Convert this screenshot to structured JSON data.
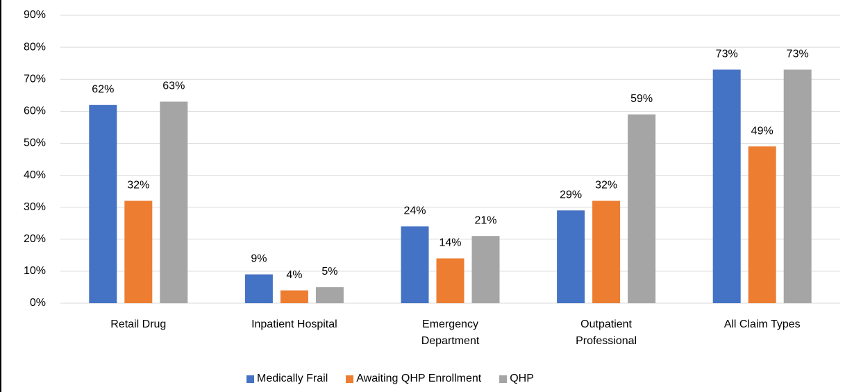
{
  "chart_data": {
    "type": "bar",
    "categories": [
      "Retail Drug",
      "Inpatient Hospital",
      "Emergency Department",
      "Outpatient Professional",
      "All Claim Types"
    ],
    "series": [
      {
        "name": "Medically Frail",
        "color": "#4472c4",
        "values": [
          62,
          9,
          24,
          29,
          73
        ],
        "value_labels": [
          "62%",
          "9%",
          "24%",
          "29%",
          "73%"
        ]
      },
      {
        "name": "Awaiting QHP Enrollment",
        "color": "#ed7d31",
        "values": [
          32,
          4,
          14,
          32,
          49
        ],
        "value_labels": [
          "32%",
          "4%",
          "14%",
          "32%",
          "49%"
        ]
      },
      {
        "name": "QHP",
        "color": "#a5a5a5",
        "values": [
          63,
          5,
          21,
          59,
          73
        ],
        "value_labels": [
          "63%",
          "5%",
          "21%",
          "59%",
          "73%"
        ]
      }
    ],
    "ylim": [
      0,
      90
    ],
    "yticks": [
      {
        "value": 0,
        "label": "0%"
      },
      {
        "value": 10,
        "label": "10%"
      },
      {
        "value": 20,
        "label": "20%"
      },
      {
        "value": 30,
        "label": "30%"
      },
      {
        "value": 40,
        "label": "40%"
      },
      {
        "value": 50,
        "label": "50%"
      },
      {
        "value": 60,
        "label": "60%"
      },
      {
        "value": 70,
        "label": "70%"
      },
      {
        "value": 80,
        "label": "80%"
      },
      {
        "value": 90,
        "label": "90%"
      }
    ],
    "grid": true,
    "legend": "bottom"
  }
}
